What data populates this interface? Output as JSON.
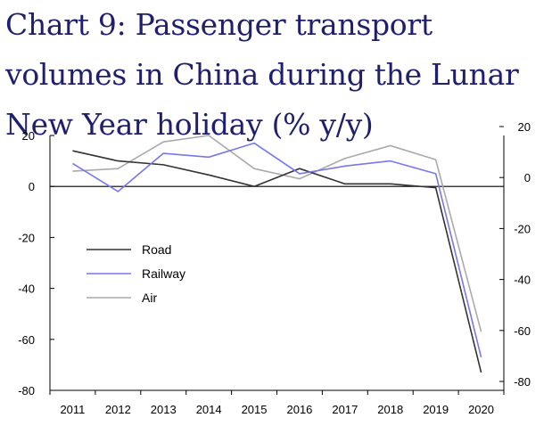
{
  "chart_data": {
    "type": "line",
    "title": "Chart 9: Passenger transport volumes in China during the Lunar New Year holiday (% y/y)",
    "categories": [
      "2011",
      "2012",
      "2013",
      "2014",
      "2015",
      "2016",
      "2017",
      "2018",
      "2019",
      "2020"
    ],
    "series": [
      {
        "name": "Road",
        "color": "#333333",
        "values": [
          14,
          10,
          8.5,
          4.5,
          0,
          7,
          1,
          1,
          -0.5,
          -73
        ]
      },
      {
        "name": "Railway",
        "color": "#7777ee",
        "values": [
          9,
          -2,
          13,
          11.5,
          17,
          5,
          8,
          10,
          5,
          -67
        ]
      },
      {
        "name": "Air",
        "color": "#aaaaaa",
        "values": [
          6,
          7,
          17.5,
          20,
          7,
          3,
          11,
          16,
          10.5,
          -57
        ]
      }
    ],
    "ylim": [
      -80,
      20
    ],
    "yticks_left": [
      20,
      0,
      -20,
      -40,
      -60,
      -80
    ],
    "yticks_right": [
      20,
      0,
      -20,
      -40,
      -60,
      -80
    ],
    "xlabel": "",
    "ylabel": "",
    "legend": "inside-left"
  }
}
